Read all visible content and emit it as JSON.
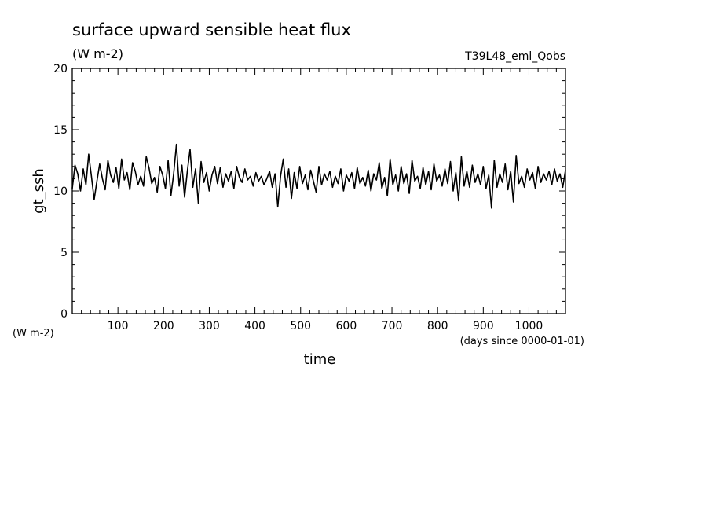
{
  "chart_data": {
    "type": "line",
    "title": "surface upward sensible heat flux",
    "units": "(W m-2)",
    "run_label": "T39L48_eml_Qobs",
    "xlabel": "time",
    "x_units": "(days since 0000-01-01)",
    "ylabel": "gt_ssh",
    "y_units": "(W m-2)",
    "xlim": [
      0,
      1080
    ],
    "ylim": [
      0,
      20
    ],
    "x_ticks": [
      100,
      200,
      300,
      400,
      500,
      600,
      700,
      800,
      900,
      1000
    ],
    "x_tick_labels": [
      "100",
      "200",
      "300",
      "400",
      "500",
      "600",
      "700",
      "800",
      "900",
      "1000"
    ],
    "y_ticks": [
      0,
      5,
      10,
      15,
      20
    ],
    "y_tick_labels": [
      "0",
      "5",
      "10",
      "15",
      "20"
    ],
    "grid": false,
    "legend": "none",
    "line_color": "#000000",
    "series": [
      {
        "x": [
          0,
          6,
          12,
          18,
          24,
          30,
          36,
          42,
          48,
          54,
          60,
          66,
          72,
          78,
          84,
          90,
          96,
          102,
          108,
          114,
          120,
          126,
          132,
          138,
          144,
          150,
          156,
          162,
          168,
          174,
          180,
          186,
          192,
          198,
          204,
          210,
          216,
          222,
          228,
          234,
          240,
          246,
          252,
          258,
          264,
          270,
          276,
          282,
          288,
          294,
          300,
          306,
          312,
          318,
          324,
          330,
          336,
          342,
          348,
          354,
          360,
          366,
          372,
          378,
          384,
          390,
          396,
          402,
          408,
          414,
          420,
          426,
          432,
          438,
          444,
          450,
          456,
          462,
          468,
          474,
          480,
          486,
          492,
          498,
          504,
          510,
          516,
          522,
          528,
          534,
          540,
          546,
          552,
          558,
          564,
          570,
          576,
          582,
          588,
          594,
          600,
          606,
          612,
          618,
          624,
          630,
          636,
          642,
          648,
          654,
          660,
          666,
          672,
          678,
          684,
          690,
          696,
          702,
          708,
          714,
          720,
          726,
          732,
          738,
          744,
          750,
          756,
          762,
          768,
          774,
          780,
          786,
          792,
          798,
          804,
          810,
          816,
          822,
          828,
          834,
          840,
          846,
          852,
          858,
          864,
          870,
          876,
          882,
          888,
          894,
          900,
          906,
          912,
          918,
          924,
          930,
          936,
          942,
          948,
          954,
          960,
          966,
          972,
          978,
          984,
          990,
          996,
          1002,
          1008,
          1014,
          1020,
          1026,
          1032,
          1038,
          1044,
          1050,
          1056,
          1062,
          1068,
          1074,
          1080
        ],
        "values": [
          10.2,
          12.1,
          11.4,
          10.0,
          11.8,
          10.5,
          13.0,
          11.2,
          9.3,
          10.8,
          12.2,
          11.0,
          10.1,
          12.5,
          11.3,
          10.7,
          11.9,
          10.2,
          12.6,
          10.9,
          11.5,
          10.1,
          12.3,
          11.6,
          10.5,
          11.2,
          10.4,
          12.8,
          11.9,
          10.6,
          11.1,
          9.9,
          12.0,
          11.3,
          10.2,
          12.5,
          9.6,
          11.4,
          13.8,
          10.4,
          12.1,
          9.5,
          11.6,
          13.4,
          10.3,
          11.8,
          9.0,
          12.4,
          10.7,
          11.5,
          10.0,
          11.3,
          12.0,
          10.6,
          11.9,
          10.3,
          11.4,
          10.8,
          11.6,
          10.2,
          12.0,
          11.1,
          10.7,
          11.8,
          10.9,
          11.2,
          10.4,
          11.5,
          10.8,
          11.2,
          10.5,
          11.0,
          11.6,
          10.3,
          11.4,
          8.7,
          11.2,
          12.6,
          10.3,
          11.8,
          9.4,
          11.5,
          10.2,
          12.0,
          10.6,
          11.3,
          10.1,
          11.7,
          10.8,
          9.9,
          12.0,
          10.5,
          11.4,
          10.9,
          11.6,
          10.3,
          11.2,
          10.6,
          11.8,
          10.0,
          11.3,
          10.8,
          11.5,
          10.2,
          11.9,
          10.6,
          11.1,
          10.4,
          11.7,
          10.0,
          11.4,
          10.9,
          12.3,
          10.2,
          11.1,
          9.6,
          12.6,
          10.5,
          11.3,
          10.0,
          12.0,
          10.6,
          11.4,
          9.8,
          12.5,
          10.8,
          11.2,
          10.2,
          11.9,
          10.5,
          11.6,
          10.1,
          12.2,
          10.8,
          11.3,
          10.4,
          11.8,
          10.6,
          12.4,
          10.0,
          11.5,
          9.2,
          12.8,
          10.4,
          11.6,
          10.3,
          12.1,
          10.7,
          11.4,
          10.5,
          12.0,
          10.2,
          11.3,
          8.6,
          12.5,
          10.3,
          11.4,
          10.7,
          12.2,
          10.1,
          11.6,
          9.1,
          12.9,
          10.6,
          11.2,
          10.3,
          11.8,
          10.9,
          11.5,
          10.2,
          12.0,
          10.7,
          11.4,
          10.9,
          11.6,
          10.5,
          11.8,
          10.8,
          11.4,
          10.3,
          11.7
        ]
      }
    ]
  }
}
